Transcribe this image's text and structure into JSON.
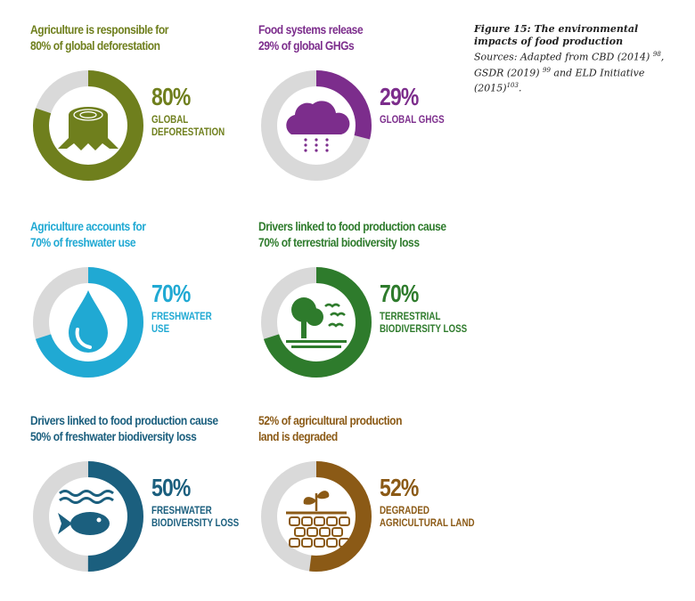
{
  "caption": {
    "title_line1": "Figure 15: The environmental",
    "title_line2": "impacts of food production",
    "src_1": "Sources: Adapted from CBD (2014)",
    "sup_1": "98",
    "src_2": "GSDR (2019)",
    "sup_2": "99",
    "src_3": "and ELD Initiative",
    "src_4": "(2015)",
    "sup_4": "103"
  },
  "colors": {
    "track": "#d9d9d9",
    "deforestation": "#6f7f1d",
    "ghg": "#7c2d8c",
    "freshwater": "#20a9d3",
    "biodiversity": "#2e7b2c",
    "fresh_bio": "#1b5f7e",
    "land": "#8b5a16"
  },
  "chart_data": [
    {
      "type": "pie",
      "id": "deforestation",
      "icon": "tree-stump-icon",
      "heading": [
        "Agriculture is responsible for",
        "80% of global deforestation"
      ],
      "value_label": "80%",
      "label": [
        "GLOBAL",
        "DEFORESTATION"
      ],
      "values": [
        80,
        20
      ]
    },
    {
      "type": "pie",
      "id": "ghg",
      "icon": "rain-cloud-icon",
      "heading": [
        "Food systems release",
        "29% of global GHGs"
      ],
      "value_label": "29%",
      "label": [
        "GLOBAL GHGs"
      ],
      "values": [
        29,
        71
      ]
    },
    {
      "type": "pie",
      "id": "freshwater",
      "icon": "water-drop-icon",
      "heading": [
        "Agriculture accounts for",
        "70% of freshwater use"
      ],
      "value_label": "70%",
      "label": [
        "FRESHWATER",
        "USE"
      ],
      "values": [
        70,
        30
      ]
    },
    {
      "type": "pie",
      "id": "biodiversity",
      "icon": "tree-birds-icon",
      "heading": [
        "Drivers linked to food production cause",
        "70% of terrestrial biodiversity loss"
      ],
      "value_label": "70%",
      "label": [
        "TERRESTRIAL",
        "BIODIVERSITY LOSS"
      ],
      "values": [
        70,
        30
      ]
    },
    {
      "type": "pie",
      "id": "fresh_bio",
      "icon": "fish-waves-icon",
      "heading": [
        "Drivers linked to food production cause",
        "50% of freshwater biodiversity loss"
      ],
      "value_label": "50%",
      "label": [
        "FRESHWATER",
        "BIODIVERSITY LOSS"
      ],
      "values": [
        50,
        50
      ]
    },
    {
      "type": "pie",
      "id": "land",
      "icon": "cracked-soil-sprout-icon",
      "heading": [
        "52% of agricultural production",
        "land is degraded"
      ],
      "value_label": "52%",
      "label": [
        "DEGRADED",
        "AGRICULTURAL LAND"
      ],
      "values": [
        52,
        48
      ]
    }
  ]
}
